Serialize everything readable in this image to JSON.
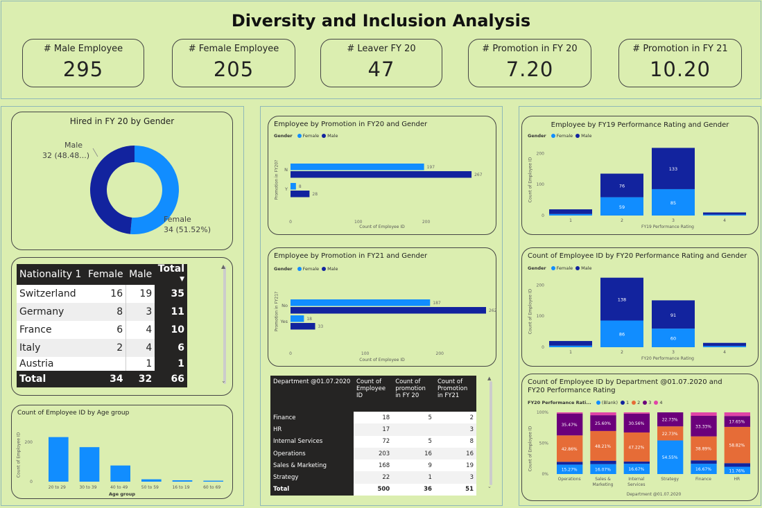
{
  "title": "Diversity and Inclusion Analysis",
  "kpis": [
    {
      "label": "# Male Employee",
      "value": "295"
    },
    {
      "label": "# Female Employee",
      "value": "205"
    },
    {
      "label": "# Leaver FY 20",
      "value": "47"
    },
    {
      "label": "# Promotion in FY 20",
      "value": "7.20"
    },
    {
      "label": "# Promotion in FY 21",
      "value": "10.20"
    }
  ],
  "colors": {
    "female": "#118DFF",
    "male": "#12239E",
    "blank": "#118DFF",
    "r1": "#12239E",
    "r2": "#E66C37",
    "r3": "#6B007B",
    "r4": "#E044A7",
    "dark": "#252423"
  },
  "donut": {
    "title": "Hired in FY 20 by Gender",
    "male_label": "Male",
    "male_value": "32 (48.48...)",
    "female_label": "Female",
    "female_value": "34 (51.52%)",
    "chart_data": {
      "type": "pie",
      "categories": [
        "Female",
        "Male"
      ],
      "values": [
        34,
        32
      ],
      "title": "Hired in FY 20 by Gender"
    }
  },
  "nationality": {
    "headers": [
      "Nationality 1",
      "Female",
      "Male",
      "Total"
    ],
    "rows": [
      [
        "Switzerland",
        "16",
        "19",
        "35"
      ],
      [
        "Germany",
        "8",
        "3",
        "11"
      ],
      [
        "France",
        "6",
        "4",
        "10"
      ],
      [
        "Italy",
        "2",
        "4",
        "6"
      ],
      [
        "Austria",
        "",
        "1",
        "1"
      ]
    ],
    "total": [
      "Total",
      "34",
      "32",
      "66"
    ]
  },
  "age": {
    "title": "Count of Employee ID by Age group",
    "chart_data": {
      "type": "bar",
      "categories": [
        "20 to 29",
        "30 to 39",
        "40 to 49",
        "50 to 59",
        "16 to 19",
        "60 to 69"
      ],
      "values": [
        226,
        175,
        82,
        12,
        7,
        5
      ],
      "xlabel": "Age group",
      "ylabel": "Count of Employee ID",
      "ylim": [
        0,
        260
      ],
      "yticks": [
        0,
        200
      ]
    }
  },
  "promo20": {
    "title": "Employee by Promotion in FY20 and Gender",
    "legend_title": "Gender",
    "legend": [
      "Female",
      "Male"
    ],
    "chart_data": {
      "type": "bar",
      "orientation": "horizontal",
      "categories": [
        "N",
        "Y"
      ],
      "series": [
        {
          "name": "Female",
          "values": [
            197,
            8
          ]
        },
        {
          "name": "Male",
          "values": [
            267,
            28
          ]
        }
      ],
      "xlabel": "Count of Employee ID",
      "ylabel": "Promotion in FY20?",
      "xlim": [
        0,
        270
      ],
      "xticks": [
        0,
        100,
        200
      ]
    }
  },
  "promo21": {
    "title": "Employee by Promotion in FY21 and Gender",
    "legend_title": "Gender",
    "legend": [
      "Female",
      "Male"
    ],
    "chart_data": {
      "type": "bar",
      "orientation": "horizontal",
      "categories": [
        "No",
        "Yes"
      ],
      "series": [
        {
          "name": "Female",
          "values": [
            187,
            18
          ]
        },
        {
          "name": "Male",
          "values": [
            262,
            33
          ]
        }
      ],
      "xlabel": "Count of Employee ID",
      "ylabel": "Promotion in FY21?",
      "xlim": [
        0,
        262
      ],
      "xticks": [
        0,
        100,
        200
      ]
    }
  },
  "dept": {
    "headers": [
      "Department @01.07.2020",
      "Count of Employee ID",
      "Count of promotion in FY 20",
      "Count of Promotion in FY21"
    ],
    "rows": [
      [
        "Finance",
        "18",
        "5",
        "2"
      ],
      [
        "HR",
        "17",
        "",
        "3"
      ],
      [
        "Internal Services",
        "72",
        "5",
        "8"
      ],
      [
        "Operations",
        "203",
        "16",
        "16"
      ],
      [
        "Sales & Marketing",
        "168",
        "9",
        "19"
      ],
      [
        "Strategy",
        "22",
        "1",
        "3"
      ]
    ],
    "total": [
      "Total",
      "500",
      "36",
      "51"
    ]
  },
  "fy19": {
    "title": "Employee by FY19 Performance Rating and Gender",
    "legend_title": "Gender",
    "legend": [
      "Female",
      "Male"
    ],
    "chart_data": {
      "type": "bar",
      "stacked": true,
      "categories": [
        "1",
        "2",
        "3",
        "4"
      ],
      "series": [
        {
          "name": "Female",
          "values": [
            5,
            59,
            85,
            3
          ],
          "labels": [
            "",
            "59",
            "85",
            ""
          ]
        },
        {
          "name": "Male",
          "values": [
            15,
            76,
            133,
            7
          ],
          "labels": [
            "",
            "76",
            "133",
            ""
          ]
        }
      ],
      "xlabel": "FY19 Performance Rating",
      "ylabel": "Count of Employee ID",
      "ylim": [
        0,
        230
      ],
      "yticks": [
        0,
        100,
        200
      ]
    }
  },
  "fy20": {
    "title": "Count of Employee ID by FY20 Performance Rating and Gender",
    "legend_title": "Gender",
    "legend": [
      "Female",
      "Male"
    ],
    "chart_data": {
      "type": "bar",
      "stacked": true,
      "categories": [
        "1",
        "2",
        "3",
        "4"
      ],
      "series": [
        {
          "name": "Female",
          "values": [
            5,
            86,
            60,
            4
          ],
          "labels": [
            "",
            "86",
            "60",
            ""
          ]
        },
        {
          "name": "Male",
          "values": [
            15,
            138,
            91,
            10
          ],
          "labels": [
            "",
            "138",
            "91",
            ""
          ]
        }
      ],
      "xlabel": "FY20 Performance Rating",
      "ylabel": "Count of Employee ID",
      "ylim": [
        0,
        230
      ],
      "yticks": [
        0,
        100,
        200
      ]
    }
  },
  "deptperf": {
    "title": "Count of Employee ID by Department @01.07.2020 and FY20 Performance Rating",
    "legend_title": "FY20 Performance Rati...",
    "legend": [
      "(Blank)",
      "1",
      "2",
      "3",
      "4"
    ],
    "chart_data": {
      "type": "bar",
      "stacked": true,
      "percent": true,
      "categories": [
        "Operations",
        "Sales & Marketing",
        "Internal Services",
        "Strategy",
        "Finance",
        "HR"
      ],
      "series": [
        {
          "name": "(Blank)",
          "values": [
            15.27,
            16.07,
            16.67,
            54.55,
            16.67,
            11.76
          ],
          "labels": [
            "15.27%",
            "16.07%",
            "16.67%",
            "54.55%",
            "16.67%",
            "11.76%"
          ]
        },
        {
          "name": "1",
          "values": [
            4.5,
            5.5,
            3.5,
            0,
            5.5,
            5.9
          ],
          "labels": [
            "",
            "",
            "",
            "",
            "",
            ""
          ]
        },
        {
          "name": "2",
          "values": [
            42.86,
            48.21,
            47.22,
            22.73,
            38.89,
            58.82
          ],
          "labels": [
            "42.86%",
            "48.21%",
            "47.22%",
            "22.73%",
            "38.89%",
            "58.82%"
          ]
        },
        {
          "name": "3",
          "values": [
            35.47,
            25.6,
            30.56,
            22.73,
            33.33,
            17.65
          ],
          "labels": [
            "35.47%",
            "25.60%",
            "30.56%",
            "22.73%",
            "33.33%",
            "17.65%"
          ]
        },
        {
          "name": "4",
          "values": [
            1.9,
            4.62,
            2.05,
            0,
            5.61,
            5.87
          ],
          "labels": [
            "",
            "",
            "",
            "",
            "",
            ""
          ]
        }
      ],
      "xlabel": "Department @01.07.2020",
      "ylabel": "Count of Employee ID",
      "yticks": [
        "0%",
        "50%",
        "100%"
      ]
    }
  }
}
